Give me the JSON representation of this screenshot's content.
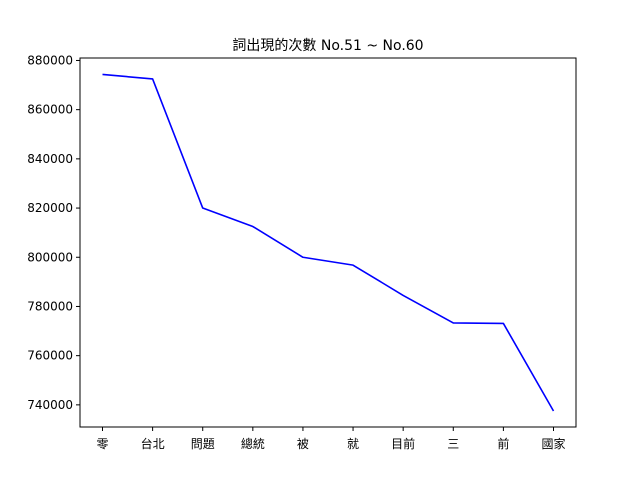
{
  "chart_data": {
    "type": "line",
    "title": "詞出現的次數 No.51 ~ No.60",
    "xlabel": "",
    "ylabel": "",
    "categories": [
      "零",
      "台北",
      "問題",
      "總統",
      "被",
      "就",
      "目前",
      "三",
      "前",
      "國家"
    ],
    "series": [
      {
        "values": [
          874300,
          872500,
          820000,
          812500,
          800000,
          796800,
          784500,
          773300,
          773100,
          737500
        ]
      }
    ],
    "yticks": [
      740000,
      760000,
      780000,
      800000,
      820000,
      840000,
      860000,
      880000
    ],
    "ytick_labels": [
      "740000",
      "760000",
      "780000",
      "800000",
      "820000",
      "840000",
      "860000",
      "880000"
    ],
    "ylim": [
      731000,
      881000
    ],
    "grid": false,
    "colors": {
      "series": "#0000ff"
    }
  }
}
